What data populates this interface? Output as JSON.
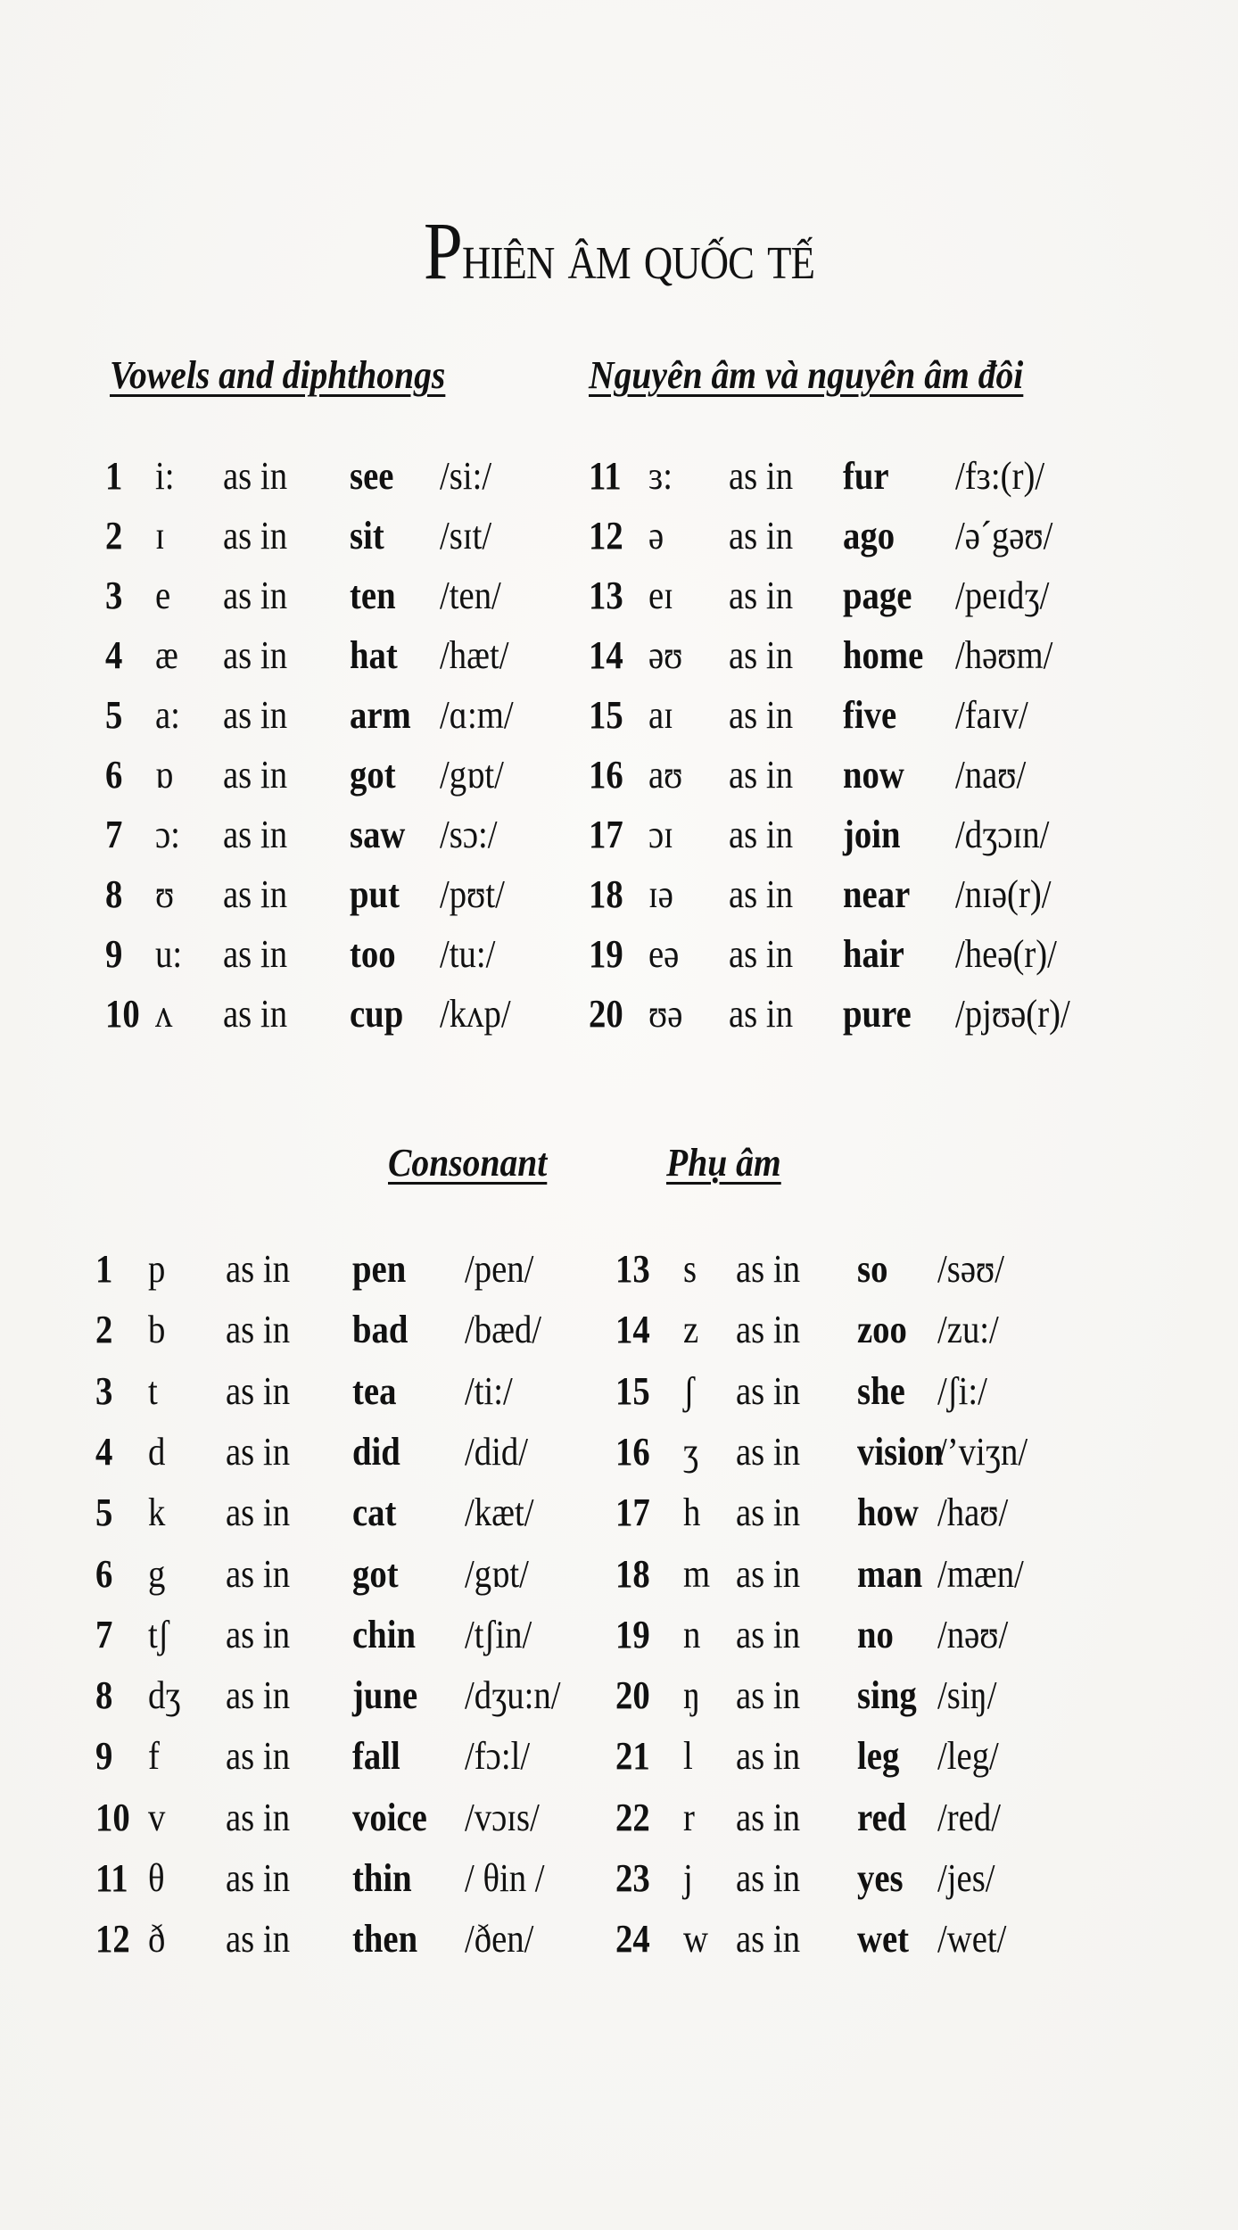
{
  "title": {
    "first": "P",
    "rest": "hiên âm quốc tế"
  },
  "vowels": {
    "heading_en": "Vowels and diphthongs",
    "heading_vi": "Nguyên âm và nguyên âm đôi",
    "left": [
      {
        "n": "1",
        "sym": "i:",
        "as": "as in",
        "word": "see",
        "ipa": "/si:/"
      },
      {
        "n": "2",
        "sym": "ɪ",
        "as": "as in",
        "word": "sit",
        "ipa": "/sɪt/"
      },
      {
        "n": "3",
        "sym": "e",
        "as": "as in",
        "word": "ten",
        "ipa": "/ten/"
      },
      {
        "n": "4",
        "sym": "æ",
        "as": "as in",
        "word": "hat",
        "ipa": "/hæt/"
      },
      {
        "n": "5",
        "sym": "a:",
        "as": "as in",
        "word": "arm",
        "ipa": "/ɑ:m/"
      },
      {
        "n": "6",
        "sym": "ɒ",
        "as": "as in",
        "word": "got",
        "ipa": "/gɒt/"
      },
      {
        "n": "7",
        "sym": "ɔ:",
        "as": "as in",
        "word": "saw",
        "ipa": "/sɔ:/"
      },
      {
        "n": "8",
        "sym": "ʊ",
        "as": "as in",
        "word": "put",
        "ipa": "/pʊt/"
      },
      {
        "n": "9",
        "sym": "u:",
        "as": "as in",
        "word": "too",
        "ipa": "/tu:/"
      },
      {
        "n": "10",
        "sym": "ʌ",
        "as": "as in",
        "word": "cup",
        "ipa": "/kʌp/"
      }
    ],
    "right": [
      {
        "n": "11",
        "sym": "ɜ:",
        "as": "as in",
        "word": "fur",
        "ipa": "/fɜ:(r)/"
      },
      {
        "n": "12",
        "sym": "ə",
        "as": "as in",
        "word": "ago",
        "ipa": "/əˊgəʊ/"
      },
      {
        "n": "13",
        "sym": "eɪ",
        "as": "as in",
        "word": "page",
        "ipa": "/peɪdʒ/"
      },
      {
        "n": "14",
        "sym": "əʊ",
        "as": "as in",
        "word": "home",
        "ipa": "/həʊm/"
      },
      {
        "n": "15",
        "sym": "aɪ",
        "as": "as in",
        "word": "five",
        "ipa": "/faɪv/"
      },
      {
        "n": "16",
        "sym": "aʊ",
        "as": "as in",
        "word": "now",
        "ipa": "/naʊ/"
      },
      {
        "n": "17",
        "sym": "ɔɪ",
        "as": "as in",
        "word": "join",
        "ipa": "/dʒɔɪn/"
      },
      {
        "n": "18",
        "sym": "ɪə",
        "as": "as in",
        "word": "near",
        "ipa": "/nɪə(r)/"
      },
      {
        "n": "19",
        "sym": "eə",
        "as": "as in",
        "word": "hair",
        "ipa": "/heə(r)/"
      },
      {
        "n": "20",
        "sym": "ʊə",
        "as": "as in",
        "word": "pure",
        "ipa": "/pjʊə(r)/"
      }
    ]
  },
  "consonants": {
    "heading_en": "Consonant",
    "heading_vi": "Phụ âm",
    "left": [
      {
        "n": "1",
        "sym": "p",
        "as": "as in",
        "word": "pen",
        "ipa": "/pen/"
      },
      {
        "n": "2",
        "sym": "b",
        "as": "as in",
        "word": "bad",
        "ipa": "/bæd/"
      },
      {
        "n": "3",
        "sym": "t",
        "as": "as in",
        "word": "tea",
        "ipa": "/ti:/"
      },
      {
        "n": "4",
        "sym": "d",
        "as": "as in",
        "word": "did",
        "ipa": "/did/"
      },
      {
        "n": "5",
        "sym": "k",
        "as": "as in",
        "word": "cat",
        "ipa": "/kæt/"
      },
      {
        "n": "6",
        "sym": "g",
        "as": "as in",
        "word": "got",
        "ipa": "/gɒt/"
      },
      {
        "n": "7",
        "sym": "tʃ",
        "as": "as in",
        "word": "chin",
        "ipa": "/tʃin/"
      },
      {
        "n": "8",
        "sym": "dʒ",
        "as": "as in",
        "word": "june",
        "ipa": "/dʒu:n/"
      },
      {
        "n": "9",
        "sym": "f",
        "as": "as in",
        "word": "fall",
        "ipa": "/fɔ:l/"
      },
      {
        "n": "10",
        "sym": "v",
        "as": "as in",
        "word": "voice",
        "ipa": "/vɔɪs/"
      },
      {
        "n": "11",
        "sym": "θ",
        "as": "as in",
        "word": "thin",
        "ipa": "/ θin /"
      },
      {
        "n": "12",
        "sym": "ð",
        "as": "as in",
        "word": "then",
        "ipa": "/ðen/"
      }
    ],
    "right": [
      {
        "n": "13",
        "sym": "s",
        "as": "as in",
        "word": "so",
        "ipa": "/səʊ/"
      },
      {
        "n": "14",
        "sym": "z",
        "as": "as in",
        "word": "zoo",
        "ipa": "/zu:/"
      },
      {
        "n": "15",
        "sym": "ʃ",
        "as": "as in",
        "word": "she",
        "ipa": "/ʃi:/"
      },
      {
        "n": "16",
        "sym": "ʒ",
        "as": "as in",
        "word": "vision",
        "ipa": "/’viʒn/"
      },
      {
        "n": "17",
        "sym": "h",
        "as": "as in",
        "word": "how",
        "ipa": "/haʊ/"
      },
      {
        "n": "18",
        "sym": "m",
        "as": "as in",
        "word": "man",
        "ipa": "/mæn/"
      },
      {
        "n": "19",
        "sym": "n",
        "as": "as in",
        "word": "no",
        "ipa": "/nəʊ/"
      },
      {
        "n": "20",
        "sym": "ŋ",
        "as": "as in",
        "word": "sing",
        "ipa": "/siŋ/"
      },
      {
        "n": "21",
        "sym": "l",
        "as": "as in",
        "word": "leg",
        "ipa": "/leg/"
      },
      {
        "n": "22",
        "sym": "r",
        "as": "as in",
        "word": "red",
        "ipa": "/red/"
      },
      {
        "n": "23",
        "sym": "j",
        "as": "as in",
        "word": "yes",
        "ipa": "/jes/"
      },
      {
        "n": "24",
        "sym": "w",
        "as": "as in",
        "word": "wet",
        "ipa": "/wet/"
      }
    ]
  }
}
